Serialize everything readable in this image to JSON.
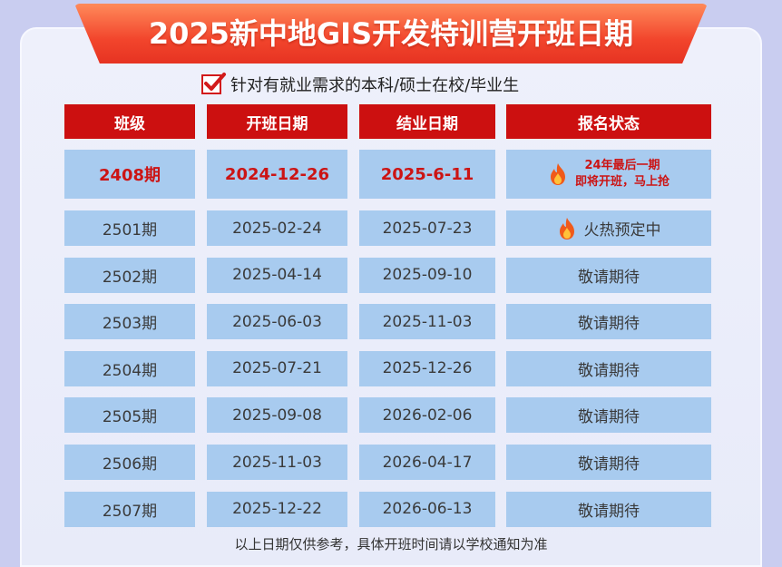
{
  "title": "2025新中地GIS开发特训营开班日期",
  "subtitle": "针对有就业需求的本科/硕士在校/毕业生",
  "headers": [
    "班级",
    "开班日期",
    "结业日期",
    "报名状态"
  ],
  "rows": [
    {
      "class": "2408期",
      "start": "2024-12-26",
      "end": "2025-6-11",
      "status_line1": "24年最后一期",
      "status_line2": "即将开班，马上抢",
      "fire": true,
      "highlight": true
    },
    {
      "class": "2501期",
      "start": "2025-02-24",
      "end": "2025-07-23",
      "status": "火热预定中",
      "fire": true
    },
    {
      "class": "2502期",
      "start": "2025-04-14",
      "end": "2025-09-10",
      "status": "敬请期待"
    },
    {
      "class": "2503期",
      "start": "2025-06-03",
      "end": "2025-11-03",
      "status": "敬请期待"
    },
    {
      "class": "2504期",
      "start": "2025-07-21",
      "end": "2025-12-26",
      "status": "敬请期待"
    },
    {
      "class": "2505期",
      "start": "2025-09-08",
      "end": "2026-02-06",
      "status": "敬请期待"
    },
    {
      "class": "2506期",
      "start": "2025-11-03",
      "end": "2026-04-17",
      "status": "敬请期待"
    },
    {
      "class": "2507期",
      "start": "2025-12-22",
      "end": "2026-06-13",
      "status": "敬请期待"
    }
  ],
  "footer": "以上日期仅供参考，具体开班时间请以学校通知为准",
  "colors": {
    "header_red": "#cc1010",
    "cell_blue": "#a8cbef",
    "highlight_red": "#cc1414",
    "banner_orange": "#f2452c"
  }
}
